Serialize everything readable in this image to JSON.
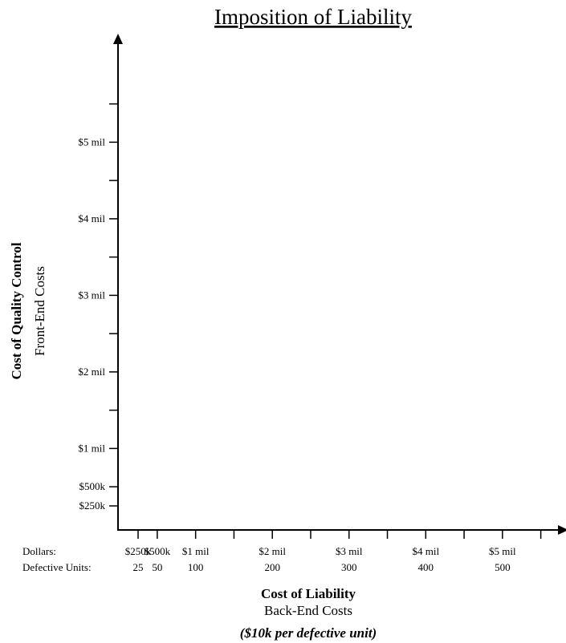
{
  "chart_data": {
    "type": "line",
    "title": "Imposition of Liability",
    "series": [],
    "x_axis": {
      "title": "Cost of Liability",
      "subtitle": "Back-End Costs",
      "note": "($10k per defective unit)",
      "row_labels": {
        "dollars": "Dollars:",
        "units": "Defective Units:"
      },
      "range": [
        0,
        5500000
      ],
      "minor_tick_values": [
        250000,
        500000,
        1000000,
        1500000,
        2000000,
        2500000,
        3000000,
        3500000,
        4000000,
        4500000,
        5000000,
        5500000
      ],
      "labeled_ticks": [
        {
          "value": 250000,
          "dollars": "$250k",
          "units": "25"
        },
        {
          "value": 500000,
          "dollars": "$500k",
          "units": "50"
        },
        {
          "value": 1000000,
          "dollars": "$1 mil",
          "units": "100"
        },
        {
          "value": 2000000,
          "dollars": "$2 mil",
          "units": "200"
        },
        {
          "value": 3000000,
          "dollars": "$3 mil",
          "units": "300"
        },
        {
          "value": 4000000,
          "dollars": "$4 mil",
          "units": "400"
        },
        {
          "value": 5000000,
          "dollars": "$5 mil",
          "units": "500"
        }
      ]
    },
    "y_axis": {
      "title": "Cost of Quality Control",
      "subtitle": "Front-End Costs",
      "range": [
        0,
        5500000
      ],
      "minor_tick_values": [
        250000,
        500000,
        1000000,
        1500000,
        2000000,
        2500000,
        3000000,
        3500000,
        4000000,
        4500000,
        5000000,
        5500000
      ],
      "labeled_ticks": [
        {
          "value": 250000,
          "label": "$250k"
        },
        {
          "value": 500000,
          "label": "$500k"
        },
        {
          "value": 1000000,
          "label": "$1 mil"
        },
        {
          "value": 2000000,
          "label": "$2 mil"
        },
        {
          "value": 3000000,
          "label": "$3 mil"
        },
        {
          "value": 4000000,
          "label": "$4 mil"
        },
        {
          "value": 5000000,
          "label": "$5 mil"
        }
      ]
    }
  }
}
